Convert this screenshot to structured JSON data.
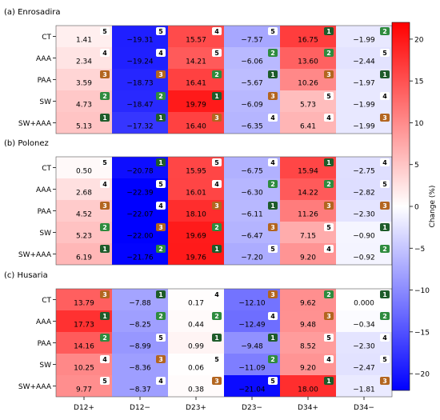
{
  "chart_data": {
    "type": "heatmap",
    "columns": [
      "D12+",
      "D12−",
      "D23+",
      "D23−",
      "D34+",
      "D34−"
    ],
    "rows": [
      "CT",
      "AAA",
      "PAA",
      "SW",
      "SW+AAA"
    ],
    "colorbar": {
      "label": "Change (%)",
      "range": [
        -22,
        22
      ],
      "ticks": [
        20,
        15,
        10,
        5,
        0,
        -5,
        -10,
        -15,
        -20
      ],
      "tick_labels": [
        "20",
        "15",
        "10",
        "5",
        "0",
        "−5",
        "−10",
        "−15",
        "−20"
      ]
    },
    "panels": [
      {
        "title": "(a) Enrosadira",
        "values": [
          [
            1.41,
            -19.31,
            15.57,
            -7.57,
            16.75,
            -1.99
          ],
          [
            2.34,
            -19.24,
            14.21,
            -6.06,
            13.6,
            -2.44
          ],
          [
            3.59,
            -18.73,
            16.41,
            -5.67,
            10.26,
            -1.97
          ],
          [
            4.73,
            -18.47,
            19.79,
            -6.09,
            5.73,
            -1.99
          ],
          [
            5.13,
            -17.32,
            16.4,
            -6.35,
            6.41,
            -1.99
          ]
        ],
        "labels": [
          [
            "1.41",
            "−19.31",
            "15.57",
            "−7.57",
            "16.75",
            "−1.99"
          ],
          [
            "2.34",
            "−19.24",
            "14.21",
            "−6.06",
            "13.60",
            "−2.44"
          ],
          [
            "3.59",
            "−18.73",
            "16.41",
            "−5.67",
            "10.26",
            "−1.97"
          ],
          [
            "4.73",
            "−18.47",
            "19.79",
            "−6.09",
            "5.73",
            "−1.99"
          ],
          [
            "5.13",
            "−17.32",
            "16.40",
            "−6.35",
            "6.41",
            "−1.99"
          ]
        ],
        "ranks": [
          [
            5,
            5,
            4,
            5,
            1,
            2
          ],
          [
            4,
            4,
            5,
            2,
            2,
            5
          ],
          [
            3,
            3,
            2,
            1,
            3,
            1
          ],
          [
            2,
            2,
            1,
            3,
            5,
            4
          ],
          [
            1,
            1,
            3,
            4,
            4,
            3
          ]
        ]
      },
      {
        "title": "(b) Polonez",
        "values": [
          [
            0.5,
            -20.78,
            15.95,
            -6.75,
            15.94,
            -2.75
          ],
          [
            2.68,
            -22.39,
            16.01,
            -6.3,
            14.22,
            -2.82
          ],
          [
            4.52,
            -22.07,
            18.1,
            -6.11,
            11.26,
            -2.3
          ],
          [
            5.23,
            -22.0,
            19.69,
            -6.47,
            7.15,
            -0.9
          ],
          [
            6.19,
            -21.76,
            19.76,
            -7.2,
            9.2,
            -0.92
          ]
        ],
        "labels": [
          [
            "0.50",
            "−20.78",
            "15.95",
            "−6.75",
            "15.94",
            "−2.75"
          ],
          [
            "2.68",
            "−22.39",
            "16.01",
            "−6.30",
            "14.22",
            "−2.82"
          ],
          [
            "4.52",
            "−22.07",
            "18.10",
            "−6.11",
            "11.26",
            "−2.30"
          ],
          [
            "5.23",
            "−22.00",
            "19.69",
            "−6.47",
            "7.15",
            "−0.90"
          ],
          [
            "6.19",
            "−21.76",
            "19.76",
            "−7.20",
            "9.20",
            "−0.92"
          ]
        ],
        "ranks": [
          [
            5,
            1,
            5,
            4,
            1,
            4
          ],
          [
            4,
            5,
            4,
            2,
            2,
            5
          ],
          [
            3,
            4,
            3,
            1,
            3,
            3
          ],
          [
            2,
            3,
            2,
            3,
            5,
            1
          ],
          [
            1,
            2,
            1,
            5,
            4,
            2
          ]
        ]
      },
      {
        "title": "(c) Husaria",
        "values": [
          [
            13.79,
            -7.88,
            0.17,
            -12.1,
            9.62,
            0.0
          ],
          [
            17.73,
            -8.25,
            0.44,
            -12.49,
            9.48,
            -0.34
          ],
          [
            14.16,
            -8.99,
            0.99,
            -9.48,
            8.52,
            -2.3
          ],
          [
            10.25,
            -8.36,
            0.06,
            -11.09,
            9.2,
            -2.47
          ],
          [
            9.77,
            -8.37,
            0.38,
            -21.04,
            18.0,
            -1.81
          ]
        ],
        "labels": [
          [
            "13.79",
            "−7.88",
            "0.17",
            "−12.10",
            "9.62",
            "0.000"
          ],
          [
            "17.73",
            "−8.25",
            "0.44",
            "−12.49",
            "9.48",
            "−0.34"
          ],
          [
            "14.16",
            "−8.99",
            "0.99",
            "−9.48",
            "8.52",
            "−2.30"
          ],
          [
            "10.25",
            "−8.36",
            "0.06",
            "−11.09",
            "9.20",
            "−2.47"
          ],
          [
            "9.77",
            "−8.37",
            "0.38",
            "−21.04",
            "18.00",
            "−1.81"
          ]
        ],
        "ranks": [
          [
            3,
            1,
            4,
            3,
            2,
            1
          ],
          [
            1,
            2,
            2,
            4,
            3,
            2
          ],
          [
            2,
            5,
            1,
            1,
            5,
            4
          ],
          [
            4,
            3,
            5,
            2,
            4,
            5
          ],
          [
            5,
            4,
            3,
            5,
            1,
            3
          ]
        ]
      }
    ],
    "rank_badge_colors": {
      "1": "#1e5c2a",
      "2": "#2e8b3e",
      "3": "#b3651f",
      "4": "#ffffff",
      "5": "#ffffff"
    },
    "colormap": {
      "negative": "#0000ff",
      "zero": "#ffffff",
      "positive": "#ff0000"
    }
  }
}
